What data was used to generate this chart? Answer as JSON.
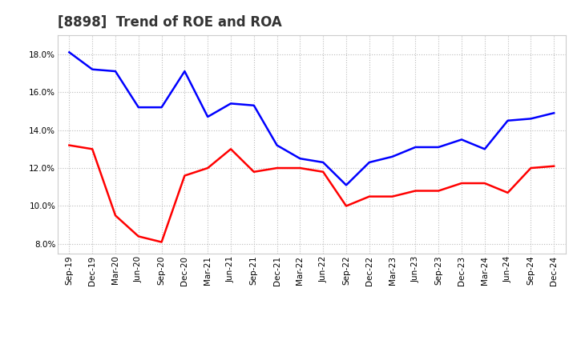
{
  "title": "[8898]  Trend of ROE and ROA",
  "x_labels": [
    "Sep-19",
    "Dec-19",
    "Mar-20",
    "Jun-20",
    "Sep-20",
    "Dec-20",
    "Mar-21",
    "Jun-21",
    "Sep-21",
    "Dec-21",
    "Mar-22",
    "Jun-22",
    "Sep-22",
    "Dec-22",
    "Mar-23",
    "Jun-23",
    "Sep-23",
    "Dec-23",
    "Mar-24",
    "Jun-24",
    "Sep-24",
    "Dec-24"
  ],
  "ROE": [
    13.2,
    13.0,
    9.5,
    8.4,
    8.1,
    11.6,
    12.0,
    13.0,
    11.8,
    12.0,
    12.0,
    11.8,
    10.0,
    10.5,
    10.5,
    10.8,
    10.8,
    11.2,
    11.2,
    10.7,
    12.0,
    12.1
  ],
  "ROA": [
    18.1,
    17.2,
    17.1,
    15.2,
    15.2,
    17.1,
    14.7,
    15.4,
    15.3,
    13.2,
    12.5,
    12.3,
    11.1,
    12.3,
    12.6,
    13.1,
    13.1,
    13.5,
    13.0,
    14.5,
    14.6,
    14.9
  ],
  "ROE_color": "#ff0000",
  "ROA_color": "#0000ff",
  "background_color": "#ffffff",
  "grid_color": "#bbbbbb",
  "ylim": [
    7.5,
    19.0
  ],
  "yticks": [
    8.0,
    10.0,
    12.0,
    14.0,
    16.0,
    18.0
  ],
  "title_fontsize": 12,
  "tick_fontsize": 7.5,
  "legend_fontsize": 9
}
